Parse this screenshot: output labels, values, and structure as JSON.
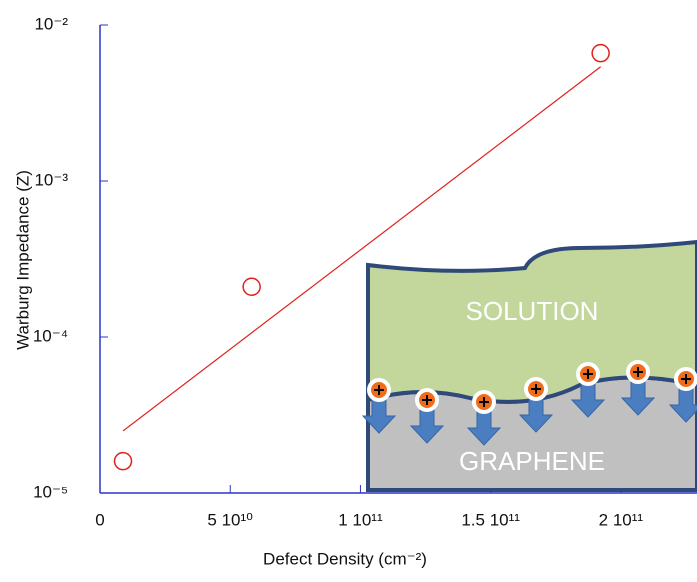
{
  "chart_data": {
    "type": "scatter",
    "x_label": "Defect Density (cm⁻²)",
    "y_label": "Warburg Impedance (Z)",
    "log_y": true,
    "xlim": [
      0,
      230000000000
    ],
    "xticks": [
      0,
      {
        "value": 50000000000,
        "label": "5 10¹⁰"
      },
      {
        "value": 100000000000,
        "label": "1 10¹¹"
      },
      {
        "value": 150000000000,
        "label": "1.5 10¹¹"
      },
      {
        "value": 200000000000,
        "label": "2 10¹¹"
      }
    ],
    "ylim": [
      1e-05,
      0.01
    ],
    "yticks": [
      {
        "value": 1e-05,
        "label": "10⁻⁵"
      },
      {
        "value": 0.0001,
        "label": "10⁻⁴"
      },
      {
        "value": 0.001,
        "label": "10⁻³"
      },
      {
        "value": 0.01,
        "label": "10⁻²"
      }
    ],
    "axis_color": "#2a35c8",
    "series": [
      {
        "kind": "markers",
        "color": "#e0211c",
        "x": [
          9600000000,
          59000000000,
          193000000000
        ],
        "values": [
          1.6e-05,
          0.00021,
          0.0066
        ]
      },
      {
        "kind": "line",
        "color": "#e0211c",
        "x": [
          9600000000,
          193000000000
        ],
        "values": [
          2.5e-05,
          0.0054
        ]
      }
    ]
  },
  "inset": {
    "solution": "SOLUTION",
    "graphene": "GRAPHENE"
  }
}
